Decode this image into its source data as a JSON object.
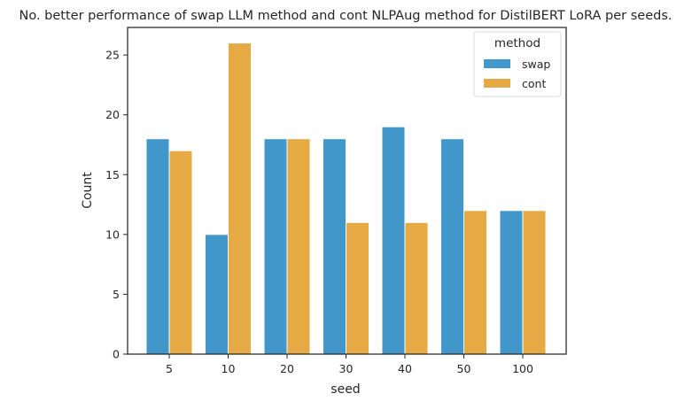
{
  "chart_data": {
    "type": "bar",
    "title": "No. better performance of swap LLM method and cont NLPAug method for DistilBERT LoRA per seeds.",
    "xlabel": "seed",
    "ylabel": "Count",
    "categories": [
      "5",
      "10",
      "20",
      "30",
      "40",
      "50",
      "100"
    ],
    "series": [
      {
        "name": "swap",
        "color": "#4197c9",
        "values": [
          18,
          10,
          18,
          18,
          19,
          18,
          12
        ]
      },
      {
        "name": "cont",
        "color": "#e5aa43",
        "values": [
          17,
          26,
          18,
          11,
          11,
          12,
          12
        ]
      }
    ],
    "ylim": [
      0,
      27.3
    ],
    "yticks": [
      0,
      5,
      10,
      15,
      20,
      25
    ],
    "grid": false,
    "legend": {
      "title": "method",
      "placement": "top-right"
    }
  }
}
